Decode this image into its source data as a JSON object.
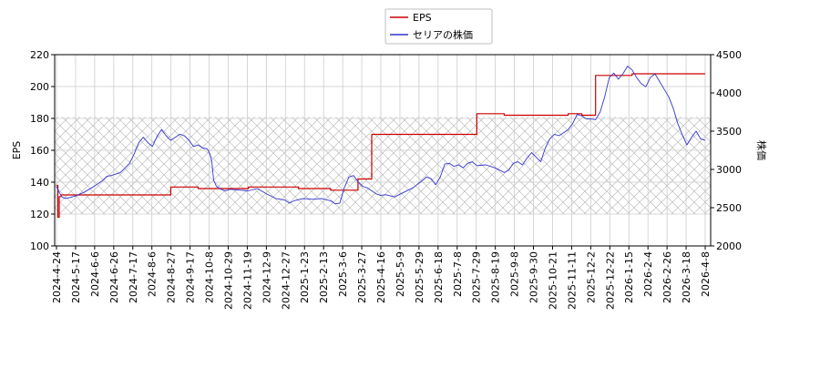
{
  "chart_data": {
    "type": "line",
    "title": "",
    "xlabel": "",
    "ylabel_left": "EPS",
    "ylabel_right": "株価",
    "ylim_left": [
      100,
      220
    ],
    "ylim_right": [
      2000,
      4500
    ],
    "yticks_left": [
      100,
      120,
      140,
      160,
      180,
      200,
      220
    ],
    "yticks_right": [
      2000,
      2500,
      3000,
      3500,
      4000,
      4500
    ],
    "x_tick_labels": [
      "2024-4-24",
      "2024-5-17",
      "2024-6-6",
      "2024-6-26",
      "2024-7-17",
      "2024-8-6",
      "2024-8-27",
      "2024-9-17",
      "2024-10-8",
      "2024-10-29",
      "2024-11-19",
      "2024-12-9",
      "2024-12-27",
      "2025-1-23",
      "2025-2-13",
      "2025-3-6",
      "2025-3-27",
      "2025-4-16",
      "2025-5-9",
      "2025-5-29",
      "2025-6-18",
      "2025-7-8",
      "2025-7-29",
      "2025-8-19",
      "2025-9-8",
      "2025-9-30",
      "2025-10-21",
      "2025-11-11",
      "2025-12-2",
      "2025-12-22",
      "2026-1-15",
      "2026-2-4",
      "2026-2-26",
      "2026-3-18",
      "2026-4-8"
    ],
    "grid": true,
    "legend_position": "top-center",
    "shaded_band_left": [
      120,
      181
    ],
    "series": [
      {
        "name": "EPS",
        "axis": "left",
        "color": "#cc0000",
        "points": [
          [
            0,
            138
          ],
          [
            1.5,
            138
          ],
          [
            1.5,
            118
          ],
          [
            3,
            118
          ],
          [
            3,
            131
          ],
          [
            5,
            131
          ],
          [
            5,
            132
          ],
          [
            20,
            132
          ],
          [
            20,
            132
          ],
          [
            40,
            132
          ],
          [
            60,
            132
          ],
          [
            80,
            132
          ],
          [
            90,
            132
          ],
          [
            90,
            132
          ],
          [
            100,
            132
          ],
          [
            100,
            132
          ],
          [
            125,
            132
          ],
          [
            125,
            137
          ],
          [
            155,
            137
          ],
          [
            155,
            136
          ],
          [
            210,
            136
          ],
          [
            210,
            137
          ],
          [
            240,
            137
          ],
          [
            240,
            137
          ],
          [
            265,
            137
          ],
          [
            265,
            136
          ],
          [
            300,
            136
          ],
          [
            300,
            135
          ],
          [
            330,
            135
          ],
          [
            330,
            142
          ],
          [
            345,
            142
          ],
          [
            345,
            170
          ],
          [
            400,
            170
          ],
          [
            400,
            170
          ],
          [
            460,
            170
          ],
          [
            460,
            183
          ],
          [
            490,
            183
          ],
          [
            490,
            182
          ],
          [
            550,
            182
          ],
          [
            550,
            182
          ],
          [
            560,
            182
          ],
          [
            560,
            183
          ],
          [
            575,
            183
          ],
          [
            575,
            182
          ],
          [
            590,
            182
          ],
          [
            590,
            207
          ],
          [
            630,
            207
          ],
          [
            630,
            208
          ],
          [
            660,
            208
          ],
          [
            660,
            208
          ],
          [
            690,
            208
          ],
          [
            710,
            208
          ]
        ]
      },
      {
        "name": "セリアの株価",
        "axis": "right",
        "color": "#3333cc",
        "points": [
          [
            0,
            2780
          ],
          [
            3,
            2700
          ],
          [
            6,
            2640
          ],
          [
            10,
            2620
          ],
          [
            20,
            2650
          ],
          [
            30,
            2700
          ],
          [
            40,
            2770
          ],
          [
            50,
            2850
          ],
          [
            55,
            2910
          ],
          [
            60,
            2920
          ],
          [
            70,
            2960
          ],
          [
            80,
            3080
          ],
          [
            85,
            3200
          ],
          [
            90,
            3350
          ],
          [
            95,
            3420
          ],
          [
            100,
            3350
          ],
          [
            105,
            3300
          ],
          [
            110,
            3430
          ],
          [
            115,
            3520
          ],
          [
            120,
            3440
          ],
          [
            125,
            3380
          ],
          [
            130,
            3420
          ],
          [
            135,
            3460
          ],
          [
            140,
            3440
          ],
          [
            145,
            3380
          ],
          [
            150,
            3300
          ],
          [
            155,
            3320
          ],
          [
            160,
            3280
          ],
          [
            165,
            3270
          ],
          [
            168,
            3200
          ],
          [
            170,
            3100
          ],
          [
            172,
            2860
          ],
          [
            175,
            2780
          ],
          [
            180,
            2740
          ],
          [
            185,
            2720
          ],
          [
            190,
            2740
          ],
          [
            200,
            2730
          ],
          [
            210,
            2720
          ],
          [
            220,
            2750
          ],
          [
            230,
            2680
          ],
          [
            240,
            2620
          ],
          [
            250,
            2600
          ],
          [
            255,
            2560
          ],
          [
            260,
            2590
          ],
          [
            270,
            2620
          ],
          [
            280,
            2610
          ],
          [
            290,
            2620
          ],
          [
            300,
            2590
          ],
          [
            305,
            2550
          ],
          [
            310,
            2560
          ],
          [
            315,
            2760
          ],
          [
            320,
            2900
          ],
          [
            325,
            2920
          ],
          [
            330,
            2840
          ],
          [
            335,
            2780
          ],
          [
            340,
            2760
          ],
          [
            345,
            2720
          ],
          [
            350,
            2680
          ],
          [
            355,
            2660
          ],
          [
            360,
            2670
          ],
          [
            370,
            2640
          ],
          [
            380,
            2700
          ],
          [
            390,
            2760
          ],
          [
            400,
            2850
          ],
          [
            405,
            2900
          ],
          [
            410,
            2880
          ],
          [
            415,
            2800
          ],
          [
            420,
            2900
          ],
          [
            425,
            3070
          ],
          [
            430,
            3080
          ],
          [
            435,
            3040
          ],
          [
            440,
            3060
          ],
          [
            445,
            3020
          ],
          [
            450,
            3080
          ],
          [
            455,
            3100
          ],
          [
            460,
            3050
          ],
          [
            470,
            3060
          ],
          [
            480,
            3020
          ],
          [
            490,
            2960
          ],
          [
            495,
            2990
          ],
          [
            500,
            3080
          ],
          [
            505,
            3100
          ],
          [
            510,
            3060
          ],
          [
            515,
            3150
          ],
          [
            520,
            3220
          ],
          [
            525,
            3160
          ],
          [
            530,
            3100
          ],
          [
            535,
            3280
          ],
          [
            540,
            3400
          ],
          [
            545,
            3460
          ],
          [
            550,
            3440
          ],
          [
            555,
            3480
          ],
          [
            560,
            3520
          ],
          [
            565,
            3600
          ],
          [
            570,
            3720
          ],
          [
            575,
            3700
          ],
          [
            580,
            3660
          ],
          [
            585,
            3660
          ],
          [
            590,
            3650
          ],
          [
            595,
            3750
          ],
          [
            600,
            3950
          ],
          [
            605,
            4200
          ],
          [
            610,
            4260
          ],
          [
            615,
            4180
          ],
          [
            620,
            4250
          ],
          [
            625,
            4350
          ],
          [
            630,
            4300
          ],
          [
            635,
            4200
          ],
          [
            640,
            4120
          ],
          [
            645,
            4080
          ],
          [
            650,
            4200
          ],
          [
            655,
            4250
          ],
          [
            660,
            4150
          ],
          [
            665,
            4050
          ],
          [
            670,
            3950
          ],
          [
            675,
            3800
          ],
          [
            680,
            3600
          ],
          [
            685,
            3450
          ],
          [
            690,
            3320
          ],
          [
            695,
            3420
          ],
          [
            700,
            3500
          ],
          [
            705,
            3400
          ],
          [
            710,
            3380
          ]
        ]
      }
    ]
  }
}
